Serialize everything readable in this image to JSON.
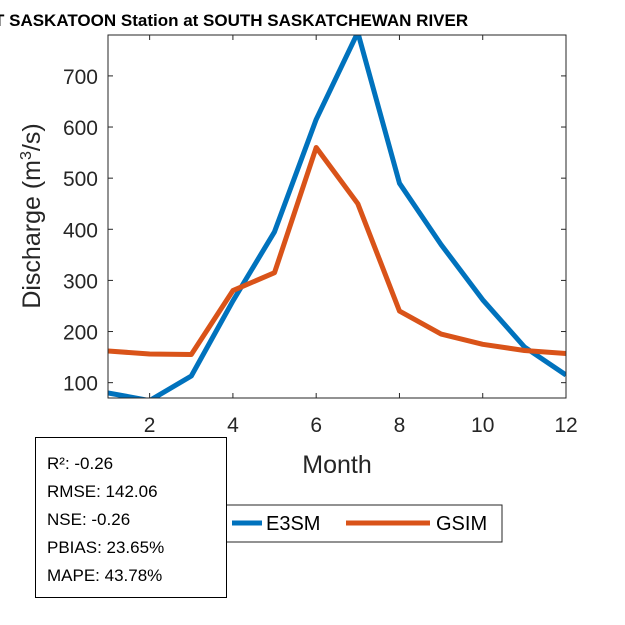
{
  "chart_data": {
    "type": "line",
    "title": "T SASKATOON  Station at  SOUTH SASKATCHEWAN RIVER",
    "xlabel": "Month",
    "ylabel_main": "Discharge (m",
    "ylabel_sup": "3",
    "ylabel_end": "/s)",
    "xlim": [
      1,
      12
    ],
    "ylim": [
      70,
      780
    ],
    "x_ticks": [
      2,
      4,
      6,
      8,
      10,
      12
    ],
    "y_ticks": [
      100,
      200,
      300,
      400,
      500,
      600,
      700
    ],
    "x": [
      1,
      2,
      3,
      4,
      5,
      6,
      7,
      8,
      9,
      10,
      11,
      12
    ],
    "series": [
      {
        "name": "E3SM",
        "color": "#0072BD",
        "values": [
          80,
          65,
          113,
          260,
          395,
          615,
          785,
          490,
          370,
          262,
          170,
          115
        ]
      },
      {
        "name": "GSIM",
        "color": "#D95319",
        "values": [
          162,
          156,
          155,
          280,
          315,
          560,
          450,
          240,
          195,
          175,
          163,
          157
        ]
      }
    ],
    "grid": false,
    "legend_position": "bottom-center"
  },
  "stats": {
    "r2": "R²: -0.26",
    "rmse": "RMSE: 142.06",
    "nse": "NSE: -0.26",
    "pbias": "PBIAS: 23.65%",
    "mape": "MAPE: 43.78%"
  }
}
